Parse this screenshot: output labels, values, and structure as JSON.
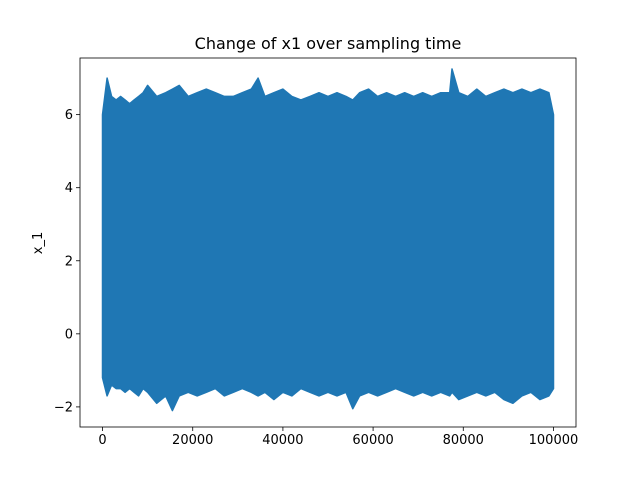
{
  "chart_data": {
    "type": "line",
    "title": "Change of x1 over sampling time",
    "xlabel": "",
    "ylabel": "x_1",
    "xlim": [
      -5000,
      105000
    ],
    "ylim": [
      -2.55,
      7.55
    ],
    "xticks": [
      0,
      20000,
      40000,
      60000,
      80000,
      100000
    ],
    "xtick_labels": [
      "0",
      "20000",
      "40000",
      "60000",
      "80000",
      "100000"
    ],
    "yticks": [
      -2,
      0,
      2,
      4,
      6
    ],
    "ytick_labels": [
      "−2",
      "0",
      "2",
      "4",
      "6"
    ],
    "grid": false,
    "legend": "none",
    "series": [
      {
        "color": "#1f77b4",
        "x": [
          0,
          1000,
          2000,
          3000,
          4000,
          5000,
          6000,
          7000,
          8000,
          9000,
          10000,
          12000,
          14000,
          15500,
          17000,
          19000,
          21000,
          23000,
          25000,
          27000,
          29000,
          31000,
          33000,
          34500,
          36000,
          38000,
          40000,
          42000,
          44000,
          46000,
          48000,
          50000,
          52000,
          54000,
          55500,
          57000,
          59000,
          61000,
          63000,
          65000,
          67000,
          69000,
          71000,
          73000,
          75000,
          77000,
          77500,
          79000,
          81000,
          83000,
          85000,
          87000,
          89000,
          91000,
          93000,
          95000,
          97000,
          99000,
          100000
        ],
        "max": [
          6.0,
          7.0,
          6.5,
          6.4,
          6.5,
          6.4,
          6.3,
          6.4,
          6.5,
          6.6,
          6.8,
          6.5,
          6.6,
          6.7,
          6.8,
          6.5,
          6.6,
          6.7,
          6.6,
          6.5,
          6.5,
          6.6,
          6.7,
          7.0,
          6.5,
          6.6,
          6.7,
          6.5,
          6.4,
          6.5,
          6.6,
          6.5,
          6.6,
          6.5,
          6.4,
          6.6,
          6.7,
          6.5,
          6.6,
          6.5,
          6.6,
          6.5,
          6.6,
          6.5,
          6.6,
          6.6,
          7.25,
          6.6,
          6.5,
          6.7,
          6.5,
          6.6,
          6.7,
          6.6,
          6.7,
          6.6,
          6.7,
          6.6,
          6.0
        ],
        "min": [
          -1.2,
          -1.7,
          -1.4,
          -1.5,
          -1.5,
          -1.6,
          -1.5,
          -1.6,
          -1.7,
          -1.5,
          -1.6,
          -1.9,
          -1.7,
          -2.1,
          -1.7,
          -1.6,
          -1.7,
          -1.6,
          -1.5,
          -1.7,
          -1.6,
          -1.5,
          -1.6,
          -1.7,
          -1.6,
          -1.8,
          -1.6,
          -1.7,
          -1.5,
          -1.6,
          -1.7,
          -1.6,
          -1.7,
          -1.6,
          -2.05,
          -1.7,
          -1.6,
          -1.7,
          -1.6,
          -1.5,
          -1.6,
          -1.7,
          -1.6,
          -1.7,
          -1.6,
          -1.7,
          -1.6,
          -1.8,
          -1.7,
          -1.6,
          -1.7,
          -1.6,
          -1.8,
          -1.9,
          -1.7,
          -1.6,
          -1.8,
          -1.7,
          -1.5
        ]
      }
    ]
  }
}
